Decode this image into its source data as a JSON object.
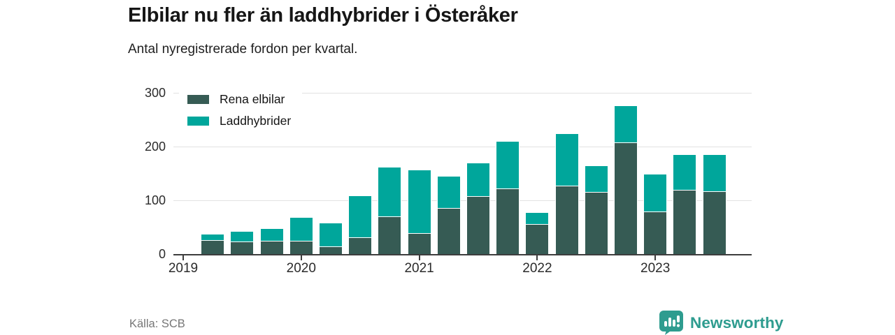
{
  "header": {
    "title": "Elbilar nu fler än laddhybrider i Österåker",
    "subtitle": "Antal nyregistrerade fordon per kvartal."
  },
  "footer": {
    "source": "Källa: SCB",
    "brand": "Newsworthy"
  },
  "colors": {
    "electric_dark": "#365b54",
    "hybrid_teal": "#00a69b",
    "brand_teal": "#2e9c8f",
    "gridline": "#e2e2e2",
    "axis": "#3d3d3d"
  },
  "chart_data": {
    "type": "bar",
    "stacked": true,
    "title": "Elbilar nu fler än laddhybrider i Österåker",
    "subtitle": "Antal nyregistrerade fordon per kvartal.",
    "xlabel": "",
    "ylabel": "",
    "ylim": [
      0,
      300
    ],
    "yticks": [
      0,
      100,
      200,
      300
    ],
    "grid": true,
    "legend_position": "top-left",
    "categories": [
      "2019 K2",
      "2019 K3",
      "2019 K4",
      "2020 K1",
      "2020 K2",
      "2020 K3",
      "2020 K4",
      "2021 K1",
      "2021 K2",
      "2021 K3",
      "2021 K4",
      "2022 K1",
      "2022 K2",
      "2022 K3",
      "2022 K4",
      "2023 K1",
      "2023 K2",
      "2023 K3"
    ],
    "series": [
      {
        "name": "Rena elbilar",
        "color": "#365b54",
        "values": [
          27,
          24,
          25,
          25,
          15,
          32,
          70,
          40,
          86,
          108,
          122,
          56,
          127,
          116,
          208,
          80,
          120,
          117
        ]
      },
      {
        "name": "Laddhybrider",
        "color": "#00a69b",
        "values": [
          11,
          20,
          23,
          44,
          44,
          77,
          93,
          118,
          60,
          63,
          89,
          23,
          98,
          49,
          69,
          70,
          66,
          69
        ]
      }
    ],
    "year_ticks": [
      {
        "label": "2019",
        "slot": 0
      },
      {
        "label": "2020",
        "slot": 4
      },
      {
        "label": "2021",
        "slot": 8
      },
      {
        "label": "2022",
        "slot": 12
      },
      {
        "label": "2023",
        "slot": 16
      }
    ],
    "first_bar_slot": 1
  }
}
